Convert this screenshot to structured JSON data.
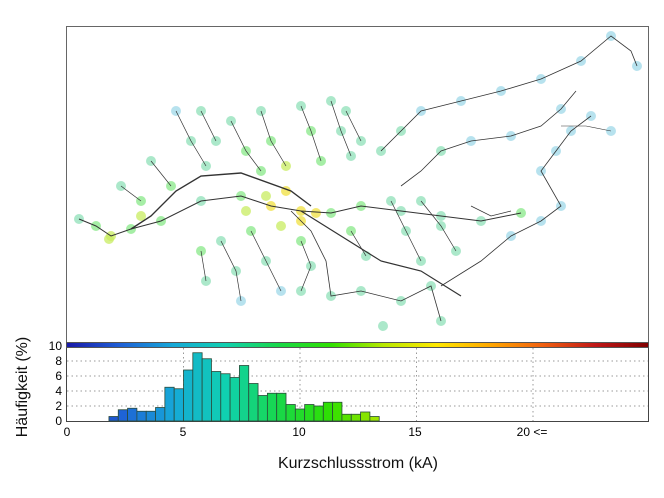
{
  "figure": {
    "ylabel": "Häufigkeit (%)",
    "xlabel": "Kurzschlussstrom (kA)",
    "yticks": [
      "0",
      "2",
      "4",
      "6",
      "8",
      "10"
    ],
    "xticks": [
      "0",
      "5",
      "10",
      "15",
      "20 <="
    ],
    "colorbar": {
      "colormap": "jet",
      "range": [
        0,
        25
      ],
      "stops": [
        "#1a1aa8",
        "#1f5fd6",
        "#16a8d8",
        "#10d0b0",
        "#18d848",
        "#30e000",
        "#b8e800",
        "#ffe800",
        "#ffa800",
        "#f06010",
        "#c01818",
        "#800000"
      ]
    },
    "map": {
      "description": "Power grid network map with nodes colored by short-circuit current",
      "line_color": "#333333",
      "node_colors": [
        "#9fd8e8",
        "#8fe0b8",
        "#88e888",
        "#c8ec60",
        "#f0e040"
      ]
    }
  },
  "chart_data": {
    "type": "bar",
    "title": "",
    "xlabel": "Kurzschlussstrom (kA)",
    "ylabel": "Häufigkeit (%)",
    "xlim": [
      0,
      25
    ],
    "ylim": [
      0,
      10
    ],
    "grid": true,
    "bin_width": 0.4,
    "bins_start": [
      1.8,
      2.2,
      2.6,
      3.0,
      3.4,
      3.8,
      4.2,
      4.6,
      5.0,
      5.4,
      5.8,
      6.2,
      6.6,
      7.0,
      7.4,
      7.8,
      8.2,
      8.6,
      9.0,
      9.4,
      9.8,
      10.2,
      10.6,
      11.0,
      11.4,
      11.8,
      12.2,
      12.6,
      13.0
    ],
    "values": [
      0.6,
      1.5,
      1.7,
      1.3,
      1.3,
      1.8,
      4.5,
      4.3,
      6.8,
      9.1,
      8.3,
      6.6,
      6.3,
      5.8,
      7.4,
      5.0,
      3.4,
      3.7,
      3.7,
      2.2,
      1.6,
      2.2,
      2.0,
      2.5,
      2.5,
      0.9,
      0.9,
      1.2,
      0.6
    ],
    "xticks": [
      0,
      5,
      10,
      15,
      20
    ],
    "xtick_labels": [
      "0",
      "5",
      "10",
      "15",
      "20 <="
    ],
    "yticks": [
      0,
      2,
      4,
      6,
      8,
      10
    ]
  }
}
